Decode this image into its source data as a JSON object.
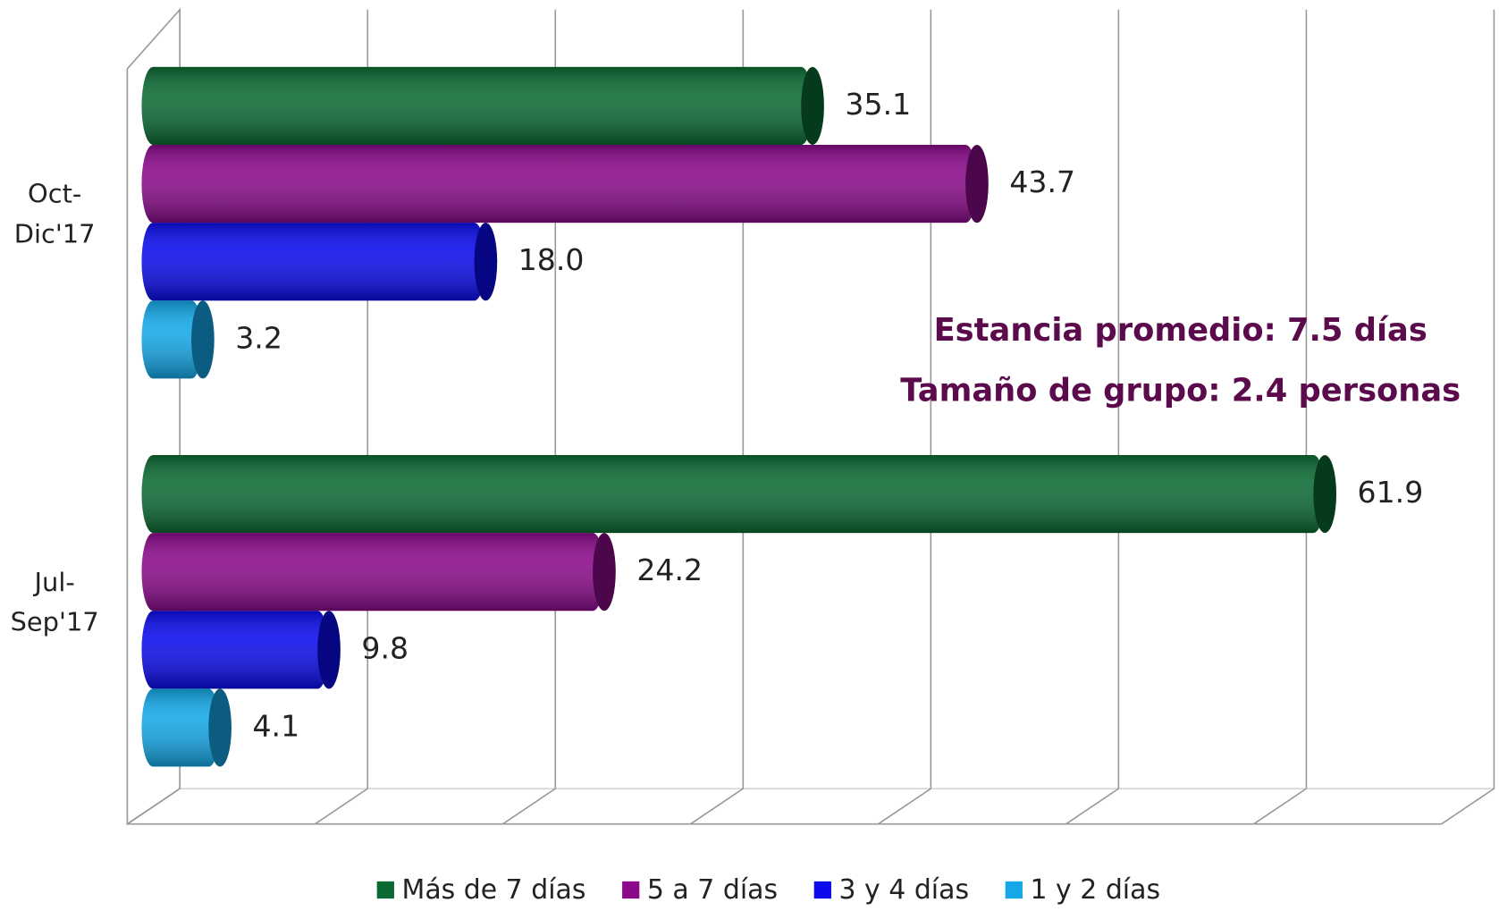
{
  "chart_data": {
    "type": "bar",
    "orientation": "horizontal",
    "categories": [
      "Oct-Dic'17",
      "Jul-Sep'17"
    ],
    "series": [
      {
        "name": "Más de 7 días",
        "color": "#0b6a33",
        "values": [
          35.1,
          61.9
        ]
      },
      {
        "name": "5 a 7 días",
        "color": "#8a0a8a",
        "values": [
          43.7,
          24.2
        ]
      },
      {
        "name": "3 y 4 días",
        "color": "#0b0bec",
        "values": [
          18.0,
          9.8
        ],
        "value_labels": [
          "18.0",
          "9.8"
        ]
      },
      {
        "name": "1 y 2 días",
        "color": "#14a8e8",
        "values": [
          3.2,
          4.1
        ]
      }
    ],
    "xlim": [
      0,
      70
    ],
    "xticks": [
      0,
      10,
      20,
      30,
      40,
      50,
      60,
      70
    ],
    "grid": true,
    "annotations": [
      "Estancia promedio: 7.5 días",
      "Tamaño de grupo: 2.4 personas"
    ],
    "annotation_color": "#5b0b4c",
    "legend": "bottom"
  }
}
